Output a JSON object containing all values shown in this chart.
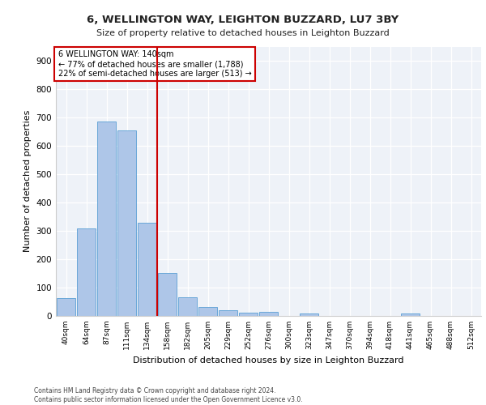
{
  "title1": "6, WELLINGTON WAY, LEIGHTON BUZZARD, LU7 3BY",
  "title2": "Size of property relative to detached houses in Leighton Buzzard",
  "xlabel": "Distribution of detached houses by size in Leighton Buzzard",
  "ylabel": "Number of detached properties",
  "footer1": "Contains HM Land Registry data © Crown copyright and database right 2024.",
  "footer2": "Contains public sector information licensed under the Open Government Licence v3.0.",
  "bar_labels": [
    "40sqm",
    "64sqm",
    "87sqm",
    "111sqm",
    "134sqm",
    "158sqm",
    "182sqm",
    "205sqm",
    "229sqm",
    "252sqm",
    "276sqm",
    "300sqm",
    "323sqm",
    "347sqm",
    "370sqm",
    "394sqm",
    "418sqm",
    "441sqm",
    "465sqm",
    "488sqm",
    "512sqm"
  ],
  "bar_values": [
    63,
    310,
    685,
    655,
    330,
    152,
    65,
    32,
    20,
    12,
    13,
    0,
    8,
    0,
    0,
    0,
    0,
    10,
    0,
    0,
    0
  ],
  "bar_color": "#aec6e8",
  "bar_edge_color": "#5a9fd4",
  "vline_x": 4.5,
  "vline_color": "#cc0000",
  "annotation_title": "6 WELLINGTON WAY: 140sqm",
  "annotation_line1": "← 77% of detached houses are smaller (1,788)",
  "annotation_line2": "22% of semi-detached houses are larger (513) →",
  "annotation_box_color": "#cc0000",
  "ylim": [
    0,
    950
  ],
  "yticks": [
    0,
    100,
    200,
    300,
    400,
    500,
    600,
    700,
    800,
    900
  ],
  "bg_color": "#eef2f8",
  "fig_bg_color": "#ffffff"
}
